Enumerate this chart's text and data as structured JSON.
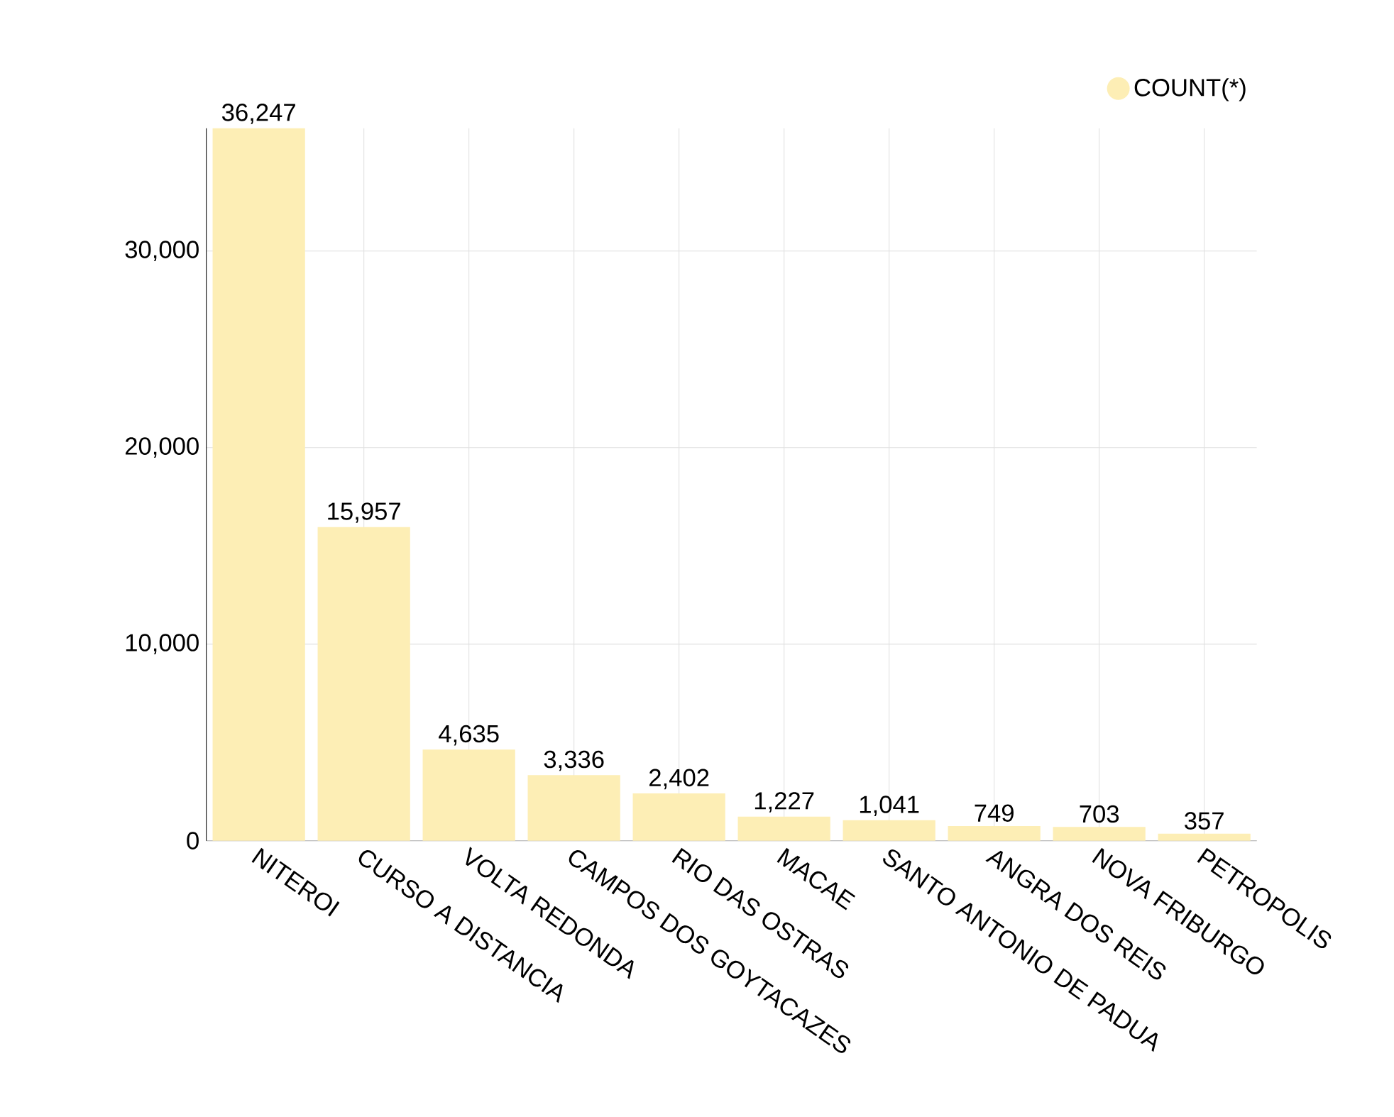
{
  "chart_data": {
    "type": "bar",
    "categories": [
      "NITEROI",
      "CURSO A DISTANCIA",
      "VOLTA REDONDA",
      "CAMPOS DOS GOYTACAZES",
      "RIO DAS OSTRAS",
      "MACAE",
      "SANTO ANTONIO DE PADUA",
      "ANGRA DOS REIS",
      "NOVA FRIBURGO",
      "PETROPOLIS"
    ],
    "series": [
      {
        "name": "COUNT(*)",
        "color": "#fdeeb5",
        "values": [
          36247,
          15957,
          4635,
          3336,
          2402,
          1227,
          1041,
          749,
          703,
          357
        ],
        "value_labels": [
          "36,247",
          "15,957",
          "4,635",
          "3,336",
          "2,402",
          "1,227",
          "1,041",
          "749",
          "703",
          "357"
        ]
      }
    ],
    "ylim": [
      0,
      36247
    ],
    "yticks": [
      0,
      {
        "value": 10000,
        "label": "10,000"
      },
      {
        "value": 20000,
        "label": "20,000"
      },
      {
        "value": 30000,
        "label": "30,000"
      }
    ],
    "grid": true,
    "legend": "top right"
  }
}
